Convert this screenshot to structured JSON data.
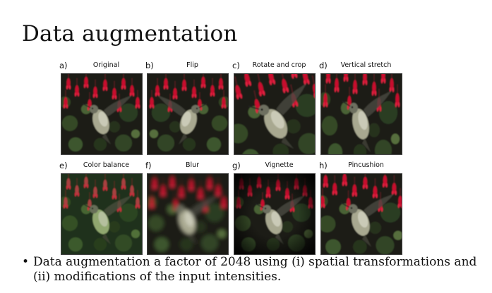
{
  "title": "Data augmentation",
  "panels": [
    {
      "letter": "a)",
      "label": "Original",
      "transform": "none"
    },
    {
      "letter": "b)",
      "label": "Flip",
      "transform": "flip"
    },
    {
      "letter": "c)",
      "label": "Rotate and crop",
      "transform": "rotate"
    },
    {
      "letter": "d)",
      "label": "Vertical stretch",
      "transform": "stretch"
    },
    {
      "letter": "e)",
      "label": "Color balance",
      "transform": "color"
    },
    {
      "letter": "f)",
      "label": "Blur",
      "transform": "blur"
    },
    {
      "letter": "g)",
      "label": "Vignette",
      "transform": "vignette"
    },
    {
      "letter": "h)",
      "label": "Pincushion",
      "transform": "pincushion"
    }
  ],
  "bullet": {
    "marker": "•",
    "text": "Data augmentation a factor of 2048 using (i) spatial transformations and (ii) modifications of the input intensities."
  }
}
